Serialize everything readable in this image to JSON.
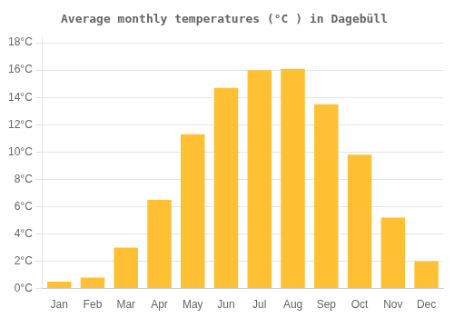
{
  "chart_data": {
    "type": "bar",
    "title": "Average monthly temperatures (°C ) in Dagebüll",
    "categories": [
      "Jan",
      "Feb",
      "Mar",
      "Apr",
      "May",
      "Jun",
      "Jul",
      "Aug",
      "Sep",
      "Oct",
      "Nov",
      "Dec"
    ],
    "values": [
      0.5,
      0.8,
      3.0,
      6.5,
      11.3,
      14.7,
      16.0,
      16.1,
      13.5,
      9.8,
      5.2,
      2.0
    ],
    "color": "#FFC133",
    "ylim": [
      0,
      18.5
    ],
    "yticks": [
      {
        "value": 0,
        "label": "0°C"
      },
      {
        "value": 2,
        "label": "2°C"
      },
      {
        "value": 4,
        "label": "4°C"
      },
      {
        "value": 6,
        "label": "6°C"
      },
      {
        "value": 8,
        "label": "8°C"
      },
      {
        "value": 10,
        "label": "10°C"
      },
      {
        "value": 12,
        "label": "12°C"
      },
      {
        "value": 14,
        "label": "14°C"
      },
      {
        "value": 16,
        "label": "16°C"
      },
      {
        "value": 18,
        "label": "18°C"
      }
    ],
    "grid": true
  }
}
